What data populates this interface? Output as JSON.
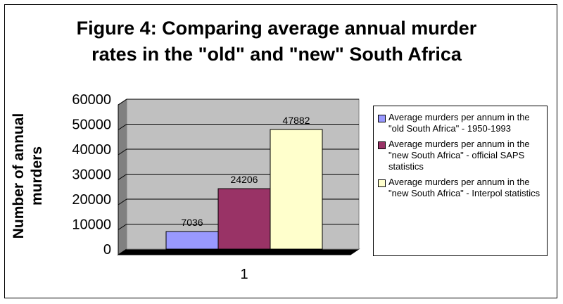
{
  "chart_data": {
    "type": "bar",
    "title_lines": [
      "Figure 4: Comparing average annual murder",
      "rates in the \"old\" and \"new\" South Africa"
    ],
    "ylabel_lines": [
      "Number of annual",
      "murders"
    ],
    "categories": [
      "1"
    ],
    "ylim": [
      0,
      60000
    ],
    "yticks": [
      0,
      10000,
      20000,
      30000,
      40000,
      50000,
      60000
    ],
    "grid": true,
    "legend_position": "right",
    "series": [
      {
        "name": "Average murders per annum in the \"old South Africa\" - 1950-1993",
        "values": [
          7036
        ],
        "color": "#9999ff"
      },
      {
        "name": "Average murders per annum in the \"new South Africa\" - official SAPS statistics",
        "values": [
          24206
        ],
        "color": "#993366"
      },
      {
        "name": "Average murders per annum in the \"new South Africa\" - Interpol statistics",
        "values": [
          47882
        ],
        "color": "#ffffcc"
      }
    ],
    "plot_background": "#c0c0c0"
  }
}
